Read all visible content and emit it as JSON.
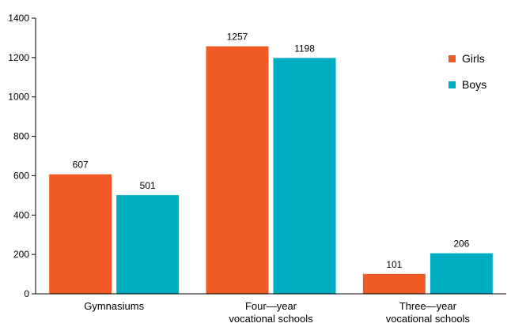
{
  "chart_data": {
    "type": "bar",
    "categories": [
      [
        "Gymnasiums"
      ],
      [
        "Four—year",
        "vocational schools"
      ],
      [
        "Three—year",
        "vocational schools"
      ]
    ],
    "series": [
      {
        "name": "Girls",
        "color": "#f15a24",
        "values": [
          607,
          1257,
          101
        ]
      },
      {
        "name": "Boys",
        "color": "#00acc1",
        "values": [
          501,
          1198,
          206
        ]
      }
    ],
    "ylim": [
      0,
      1400
    ],
    "yticks": [
      0,
      200,
      400,
      600,
      800,
      1000,
      1200,
      1400
    ],
    "grid": false,
    "legend_position": "top-right"
  }
}
